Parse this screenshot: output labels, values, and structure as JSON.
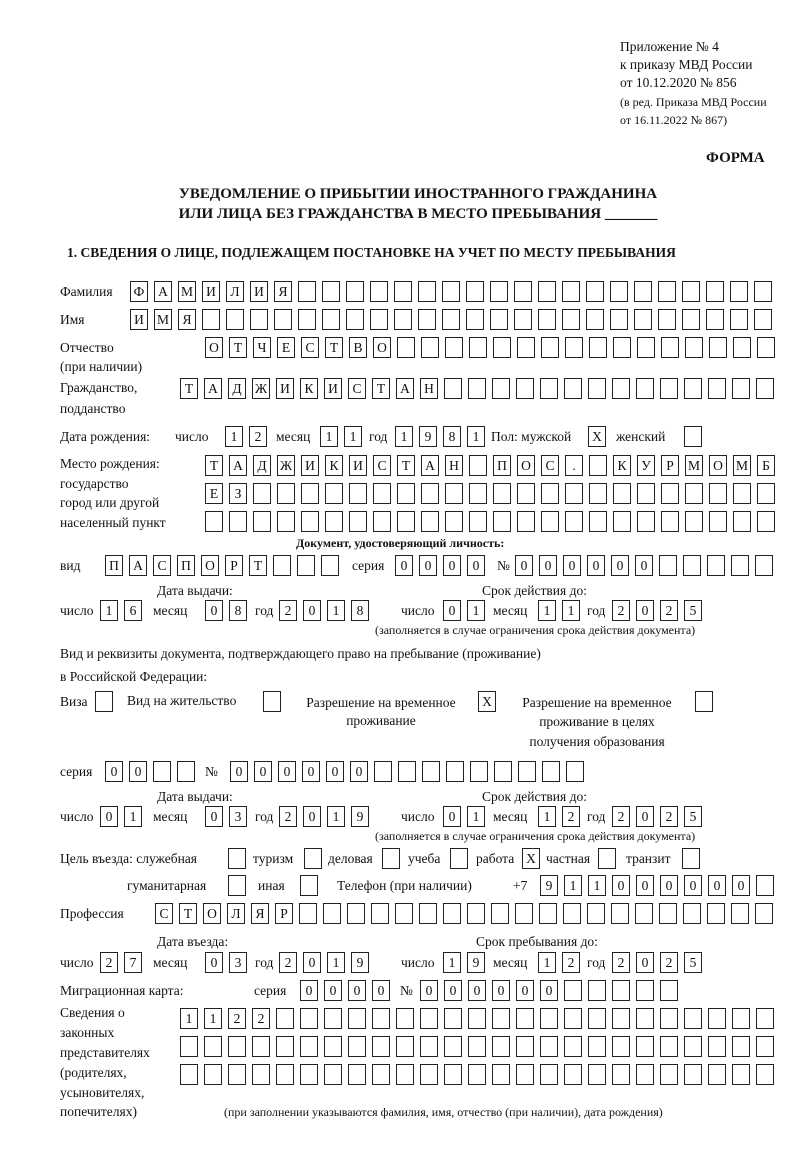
{
  "header": {
    "annex": "Приложение № 4",
    "order": "к приказу МВД России",
    "order_date": "от 10.12.2020 № 856",
    "edition1": "(в ред. Приказа МВД России",
    "edition2": "от 16.11.2022 № 867)",
    "form_label": "ФОРМА"
  },
  "title": {
    "line1": "УВЕДОМЛЕНИЕ О ПРИБЫТИИ ИНОСТРАННОГО ГРАЖДАНИНА",
    "line2": "ИЛИ ЛИЦА БЕЗ ГРАЖДАНСТВА В МЕСТО ПРЕБЫВАНИЯ _______"
  },
  "section1": "1. СВЕДЕНИЯ О ЛИЦЕ, ПОДЛЕЖАЩЕМ ПОСТАНОВКЕ НА УЧЕТ ПО МЕСТУ ПРЕБЫВАНИЯ",
  "labels": {
    "surname": "Фамилия",
    "name": "Имя",
    "patronymic": "Отчество",
    "patronymic_note": "(при наличии)",
    "citizenship1": "Гражданство,",
    "citizenship2": "подданство",
    "birth_date": "Дата рождения:",
    "day": "число",
    "month": "месяц",
    "year": "год",
    "sex_male": "Пол: мужской",
    "sex_female": "женский",
    "birthplace1": "Место рождения:",
    "birthplace2": "государство",
    "birthplace3": "город или другой",
    "birthplace4": "населенный пункт",
    "id_doc": "Документ, удостоверяющий личность:",
    "kind": "вид",
    "series": "серия",
    "number": "№",
    "issue_date": "Дата выдачи:",
    "valid_until": "Срок действия до:",
    "validity_note": "(заполняется в случае ограничения срока действия документа)",
    "stay_doc1": "Вид и реквизиты документа, подтверждающего право на пребывание (проживание)",
    "stay_doc2": "в Российской Федерации:",
    "visa": "Виза",
    "residence_permit": "Вид на жительство",
    "temp_residence1": "Разрешение на временное",
    "temp_residence2": "проживание",
    "temp_edu1": "Разрешение на временное",
    "temp_edu2": "проживание в целях",
    "temp_edu3": "получения образования",
    "purpose": "Цель въезда: служебная",
    "tourism": "туризм",
    "business": "деловая",
    "study": "учеба",
    "work": "работа",
    "private": "частная",
    "transit": "транзит",
    "humanitarian": "гуманитарная",
    "other": "иная",
    "phone": "Телефон (при наличии)",
    "phone_prefix": "+7",
    "profession": "Профессия",
    "entry_date": "Дата въезда:",
    "stay_until": "Срок пребывания до:",
    "migration_card": "Миграционная карта:",
    "reps1": "Сведения о",
    "reps2": "законных",
    "reps3": "представителях",
    "reps4": "(родителях,",
    "reps5": "усыновителях,",
    "reps6": "попечителях)",
    "reps_note": "(при заполнении указываются фамилия, имя, отчество (при наличии), дата рождения)"
  },
  "fields": {
    "surname": "ФАМИЛИЯ",
    "name": "ИМЯ",
    "patronymic": "ОТЧЕСТВО",
    "citizenship": "ТАДЖИКИСТАН",
    "birth_day": "12",
    "birth_month": "11",
    "birth_year": "1981",
    "birthplace1": "ТАДЖИКИСТАН ПОС. КУРМОМБ",
    "birthplace2": "ЕЗ",
    "birthplace3": "",
    "id_kind": "ПАСПОРТ",
    "id_series": "0000",
    "id_number": "000000",
    "id_issue_day": "16",
    "id_issue_month": "08",
    "id_issue_year": "2018",
    "id_valid_day": "01",
    "id_valid_month": "11",
    "id_valid_year": "2025",
    "stay_series": "00",
    "stay_number": "000000",
    "stay_issue_day": "01",
    "stay_issue_month": "03",
    "stay_issue_year": "2019",
    "stay_valid_day": "01",
    "stay_valid_month": "12",
    "stay_valid_year": "2025",
    "phone": "911000000",
    "profession": "СТОЛЯР",
    "entry_day": "27",
    "entry_month": "03",
    "entry_year": "2019",
    "stay_until_day": "19",
    "stay_until_month": "12",
    "stay_until_year": "2025",
    "mig_series": "0000",
    "mig_number": "000000",
    "reps1": "1122",
    "reps2": "",
    "reps3": ""
  },
  "checkboxes": {
    "mark": "X",
    "sex_male": true,
    "sex_female": false,
    "visa": false,
    "residence_permit": false,
    "temp_residence": true,
    "temp_residence_edu": false,
    "purpose_service": false,
    "purpose_tourism": false,
    "purpose_business": false,
    "purpose_study": false,
    "purpose_work": true,
    "purpose_private": false,
    "purpose_transit": false,
    "purpose_humanitarian": false,
    "purpose_other": false
  }
}
